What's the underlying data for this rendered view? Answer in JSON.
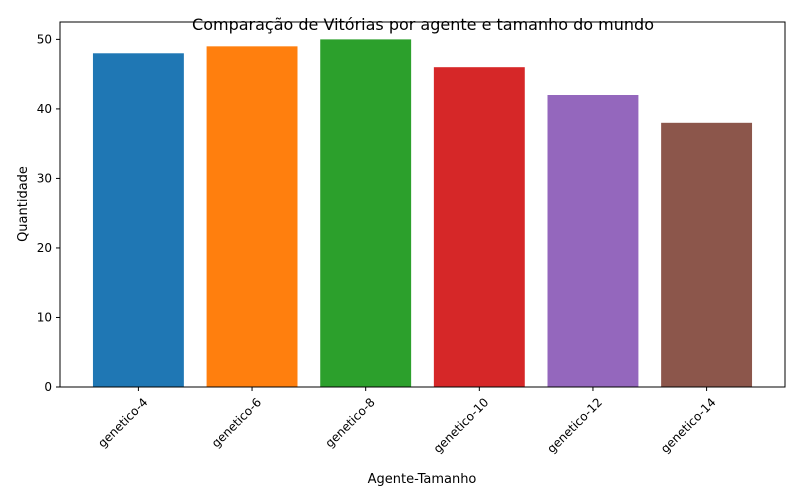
{
  "chart_data": {
    "type": "bar",
    "title": "Comparação de Vitórias por agente e tamanho do mundo",
    "xlabel": "Agente-Tamanho",
    "ylabel": "Quantidade",
    "categories": [
      "genetico-4",
      "genetico-6",
      "genetico-8",
      "genetico-10",
      "genetico-12",
      "genetico-14"
    ],
    "values": [
      48,
      49,
      50,
      46,
      42,
      38
    ],
    "colors": [
      "#1f77b4",
      "#ff7f0e",
      "#2ca02c",
      "#d62728",
      "#9467bd",
      "#8c564b"
    ],
    "ylim": [
      0,
      52.5
    ],
    "yticks": [
      0,
      10,
      20,
      30,
      40,
      50
    ],
    "grid": false,
    "x_tick_rotation_deg": 45
  }
}
